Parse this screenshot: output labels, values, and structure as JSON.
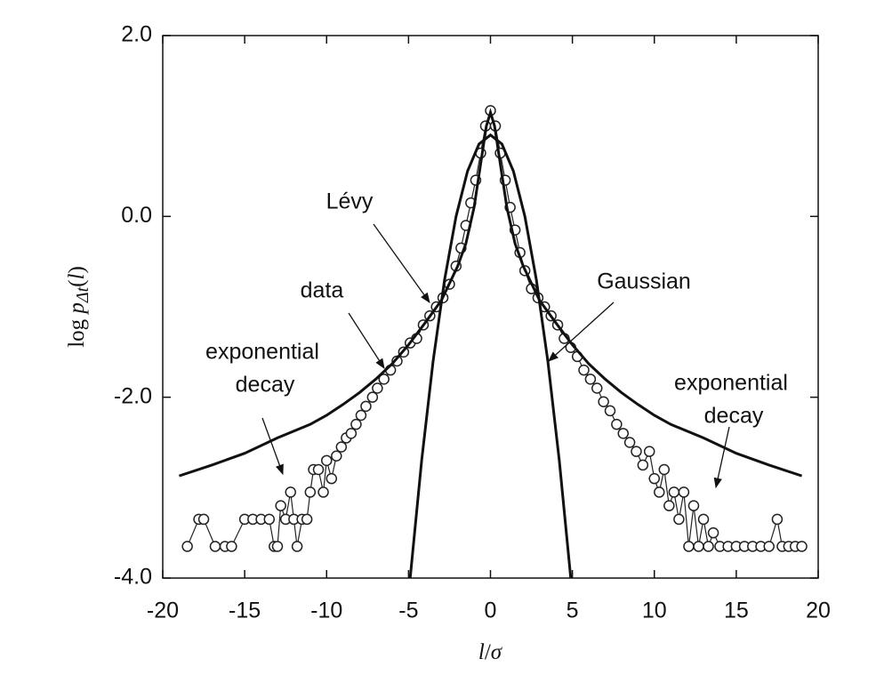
{
  "chart_data": {
    "type": "scatter",
    "xlabel": [
      "l",
      "/",
      "σ"
    ],
    "ylabel": [
      "log ",
      "p",
      "Δt",
      "(",
      "l",
      ")"
    ],
    "xlim": [
      -20,
      20
    ],
    "ylim": [
      -4,
      2
    ],
    "xticks": [
      -20,
      -15,
      -10,
      -5,
      0,
      5,
      10,
      15,
      20
    ],
    "yticks": [
      {
        "value": -4,
        "label": "-4.0"
      },
      {
        "value": -2,
        "label": "-2.0"
      },
      {
        "value": 0,
        "label": "0.0"
      },
      {
        "value": 2,
        "label": "2.0"
      }
    ],
    "series": [
      {
        "name": "data",
        "style": "markers",
        "color": "#222222",
        "x": [
          -18.5,
          -17.8,
          -17.5,
          -16.8,
          -16.2,
          -15.8,
          -15,
          -14.5,
          -14,
          -13.5,
          -13.2,
          -13,
          -12.8,
          -12.5,
          -12.2,
          -12,
          -11.8,
          -11.5,
          -11.2,
          -11,
          -10.8,
          -10.5,
          -10.2,
          -10,
          -9.7,
          -9.4,
          -9.1,
          -8.8,
          -8.5,
          -8.2,
          -7.9,
          -7.6,
          -7.2,
          -6.9,
          -6.5,
          -6.1,
          -5.7,
          -5.3,
          -4.9,
          -4.5,
          -4.1,
          -3.7,
          -3.3,
          -2.9,
          -2.5,
          -2.1,
          -1.8,
          -1.5,
          -1.2,
          -0.9,
          -0.6,
          -0.3,
          0,
          0.3,
          0.6,
          0.9,
          1.2,
          1.5,
          1.8,
          2.1,
          2.5,
          2.9,
          3.3,
          3.7,
          4.1,
          4.5,
          4.9,
          5.3,
          5.7,
          6.1,
          6.5,
          6.9,
          7.3,
          7.7,
          8.1,
          8.5,
          8.9,
          9.3,
          9.7,
          10,
          10.3,
          10.6,
          10.9,
          11.2,
          11.5,
          11.8,
          12.1,
          12.4,
          12.7,
          13,
          13.3,
          13.6,
          14,
          14.5,
          15,
          15.5,
          16,
          16.5,
          17,
          17.5,
          17.8,
          18.2,
          18.6,
          19
        ],
        "values": [
          -3.65,
          -3.35,
          -3.35,
          -3.65,
          -3.65,
          -3.65,
          -3.35,
          -3.35,
          -3.35,
          -3.35,
          -3.65,
          -3.65,
          -3.2,
          -3.35,
          -3.05,
          -3.35,
          -3.65,
          -3.35,
          -3.35,
          -3.05,
          -2.8,
          -2.8,
          -3.05,
          -2.7,
          -2.9,
          -2.65,
          -2.55,
          -2.45,
          -2.4,
          -2.3,
          -2.2,
          -2.1,
          -2.0,
          -1.9,
          -1.8,
          -1.7,
          -1.6,
          -1.5,
          -1.4,
          -1.35,
          -1.2,
          -1.1,
          -1.0,
          -0.9,
          -0.75,
          -0.55,
          -0.35,
          -0.1,
          0.15,
          0.4,
          0.7,
          1.0,
          1.17,
          1.0,
          0.7,
          0.4,
          0.1,
          -0.15,
          -0.4,
          -0.6,
          -0.8,
          -0.9,
          -1.0,
          -1.1,
          -1.2,
          -1.35,
          -1.45,
          -1.55,
          -1.7,
          -1.8,
          -1.9,
          -2.05,
          -2.15,
          -2.3,
          -2.4,
          -2.5,
          -2.6,
          -2.75,
          -2.6,
          -2.9,
          -3.05,
          -2.8,
          -3.2,
          -3.05,
          -3.35,
          -3.05,
          -3.65,
          -3.2,
          -3.65,
          -3.35,
          -3.65,
          -3.5,
          -3.65,
          -3.65,
          -3.65,
          -3.65,
          -3.65,
          -3.65,
          -3.65,
          -3.35,
          -3.65,
          -3.65,
          -3.65,
          -3.65
        ]
      },
      {
        "name": "Lévy",
        "style": "line",
        "color": "#111111",
        "x": [
          -19,
          -17,
          -15,
          -13,
          -11,
          -10,
          -9,
          -8,
          -7,
          -6,
          -5,
          -4,
          -3,
          -2,
          -1.5,
          -1,
          -0.5,
          -0.25,
          0,
          0.25,
          0.5,
          1,
          1.5,
          2,
          3,
          4,
          5,
          6,
          7,
          8,
          9,
          10,
          11,
          13,
          15,
          17,
          19
        ],
        "values": [
          -2.87,
          -2.75,
          -2.62,
          -2.45,
          -2.3,
          -2.2,
          -2.08,
          -1.95,
          -1.8,
          -1.63,
          -1.42,
          -1.18,
          -0.93,
          -0.55,
          -0.3,
          0.1,
          0.7,
          1.0,
          1.15,
          1.0,
          0.7,
          0.1,
          -0.3,
          -0.55,
          -0.93,
          -1.18,
          -1.42,
          -1.63,
          -1.8,
          -1.95,
          -2.08,
          -2.2,
          -2.3,
          -2.45,
          -2.62,
          -2.75,
          -2.87
        ]
      },
      {
        "name": "Gaussian",
        "style": "line",
        "color": "#111111",
        "x": [
          -4.9,
          -4.2,
          -3.5,
          -2.8,
          -2.1,
          -1.4,
          -0.7,
          0,
          0.7,
          1.4,
          2.1,
          2.8,
          3.5,
          4.2,
          4.9
        ],
        "values": [
          -4.0,
          -2.7,
          -1.6,
          -0.7,
          0.0,
          0.5,
          0.8,
          0.9,
          0.8,
          0.5,
          0.0,
          -0.7,
          -1.6,
          -2.7,
          -4.0
        ]
      }
    ],
    "annotations": [
      [
        "exponential",
        "decay"
      ],
      [
        "exponential",
        "decay"
      ]
    ]
  }
}
